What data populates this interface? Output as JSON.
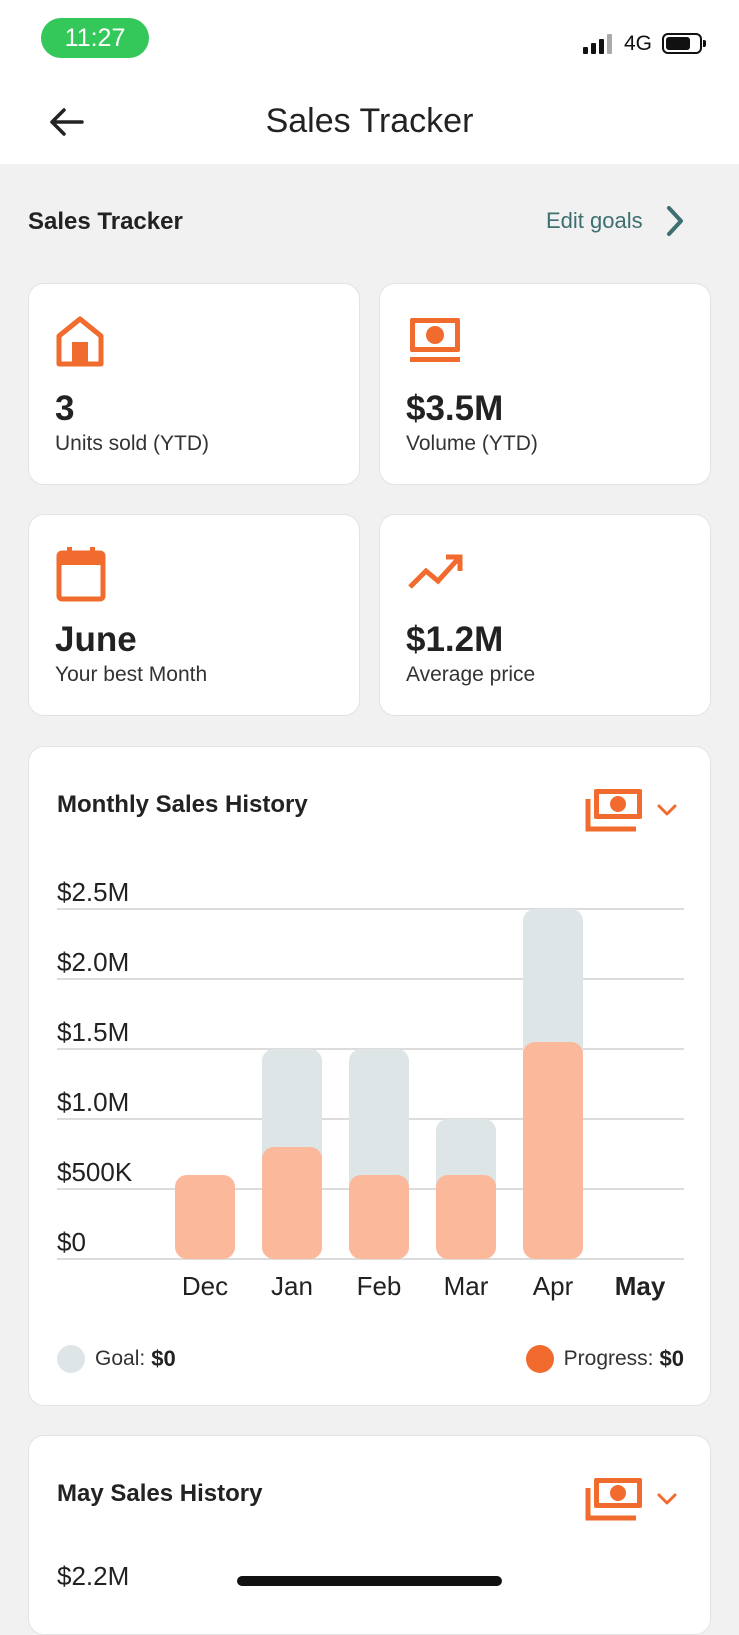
{
  "status_bar": {
    "time": "11:27",
    "network": "4G"
  },
  "nav": {
    "title": "Sales Tracker"
  },
  "section": {
    "title": "Sales Tracker",
    "edit_goals": "Edit goals"
  },
  "stats": [
    {
      "icon": "house-icon",
      "value": "3",
      "label": "Units sold (YTD)"
    },
    {
      "icon": "money-icon",
      "value": "$3.5M",
      "label": "Volume (YTD)"
    },
    {
      "icon": "calendar-icon",
      "value": "June",
      "label": "Your best Month"
    },
    {
      "icon": "trend-icon",
      "value": "$1.2M",
      "label": "Average price"
    }
  ],
  "colors": {
    "accent": "#f26b2e",
    "progress": "#fbb89b",
    "goal": "#dde5e6",
    "teal": "#3d6e70"
  },
  "chart_data": {
    "type": "bar",
    "title": "Monthly Sales History",
    "categories": [
      "Dec",
      "Jan",
      "Feb",
      "Mar",
      "Apr",
      "May"
    ],
    "selected_category": "May",
    "series": [
      {
        "name": "Goal",
        "values": [
          0,
          1500000,
          1500000,
          1000000,
          2500000,
          0
        ]
      },
      {
        "name": "Progress",
        "values": [
          600000,
          800000,
          600000,
          600000,
          1550000,
          0
        ]
      }
    ],
    "ylim": [
      0,
      2500000
    ],
    "yticks": [
      0,
      500000,
      1000000,
      1500000,
      2000000,
      2500000
    ],
    "ytick_labels": [
      "$0",
      "$500K",
      "$1.0M",
      "$1.5M",
      "$2.0M",
      "$2.5M"
    ],
    "legend": {
      "goal_label": "Goal:",
      "goal_value": "$0",
      "progress_label": "Progress:",
      "progress_value": "$0"
    }
  },
  "second_card": {
    "title": "May Sales History",
    "first_tick": "$2.2M"
  }
}
